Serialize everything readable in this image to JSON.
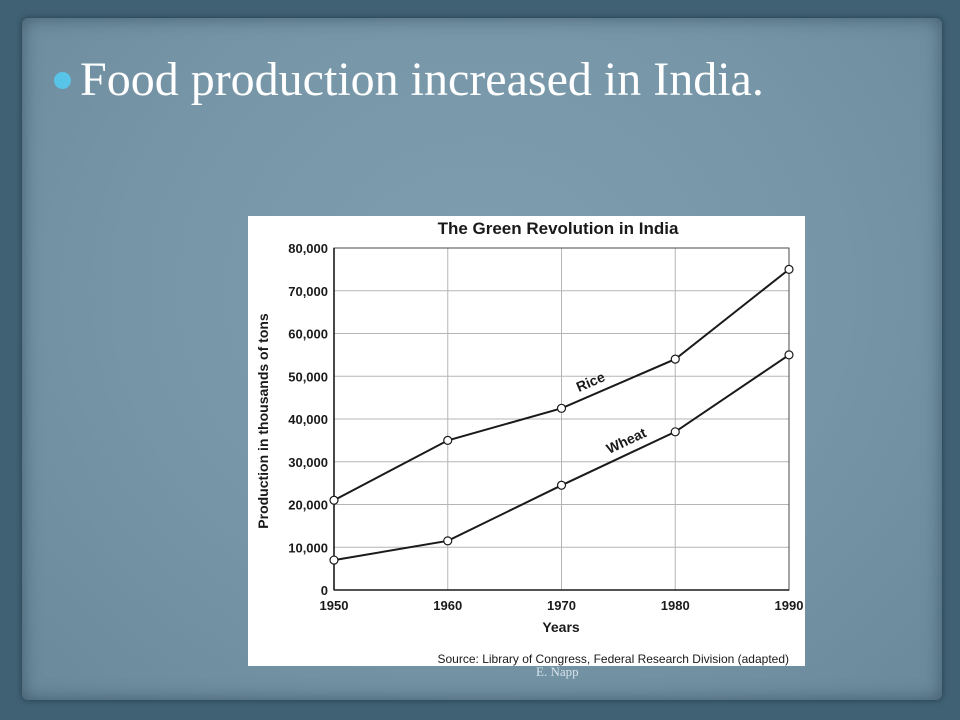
{
  "slide": {
    "bullet": "Food production increased in India.",
    "footer": "E. Napp"
  },
  "chart_data": {
    "type": "line",
    "title": "The Green Revolution in India",
    "xlabel": "Years",
    "ylabel": "Production in thousands of tons",
    "source": "Source: Library of Congress, Federal Research Division (adapted)",
    "x": [
      1950,
      1960,
      1970,
      1980,
      1990
    ],
    "x_tick_labels": [
      "1950",
      "1960",
      "1970",
      "1980",
      "1990"
    ],
    "y_tick_labels": [
      "0",
      "10,000",
      "20,000",
      "30,000",
      "40,000",
      "50,000",
      "60,000",
      "70,000",
      "80,000"
    ],
    "y_ticks": [
      0,
      10000,
      20000,
      30000,
      40000,
      50000,
      60000,
      70000,
      80000
    ],
    "xlim": [
      1950,
      1990
    ],
    "ylim": [
      0,
      80000
    ],
    "grid": true,
    "legend": "inline",
    "series": [
      {
        "name": "Rice",
        "values": [
          21000,
          35000,
          42500,
          54000,
          75000
        ]
      },
      {
        "name": "Wheat",
        "values": [
          7000,
          11500,
          24500,
          37000,
          55000
        ]
      }
    ]
  }
}
